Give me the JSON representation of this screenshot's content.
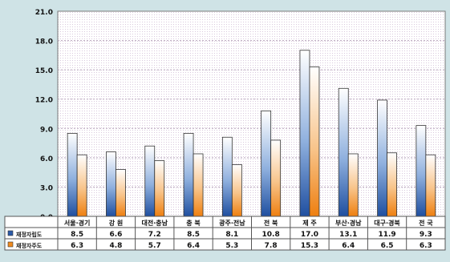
{
  "chart_data": {
    "type": "bar",
    "title": "",
    "xlabel": "",
    "ylabel": "",
    "ylim": [
      0,
      21
    ],
    "yticks": [
      "0.0",
      "3.0",
      "6.0",
      "9.0",
      "12.0",
      "15.0",
      "18.0",
      "21.0"
    ],
    "ytick_values": [
      0,
      3,
      6,
      9,
      12,
      15,
      18,
      21
    ],
    "grid": true,
    "legend_placement": "table-left",
    "categories": [
      "서울·경기",
      "강 원",
      "대전·충남",
      "충 북",
      "광주·전남",
      "전 북",
      "제 주",
      "부산·경남",
      "대구·경북",
      "전 국"
    ],
    "series": [
      {
        "name": "재정자립도",
        "color": "#2a5aa8",
        "value_labels": [
          "8.5",
          "6.6",
          "7.2",
          "8.5",
          "8.1",
          "10.8",
          "17.0",
          "13.1",
          "11.9",
          "9.3"
        ],
        "values": [
          8.5,
          6.6,
          7.2,
          8.5,
          8.1,
          10.8,
          17.0,
          13.1,
          11.9,
          9.3
        ]
      },
      {
        "name": "재정자주도",
        "color": "#f08a1e",
        "value_labels": [
          "6.3",
          "4.8",
          "5.7",
          "6.4",
          "5.3",
          "7.8",
          "15.3",
          "6.4",
          "6.5",
          "6.3"
        ],
        "values": [
          6.3,
          4.8,
          5.7,
          6.4,
          5.3,
          7.8,
          15.3,
          6.4,
          6.5,
          6.3
        ]
      }
    ]
  }
}
